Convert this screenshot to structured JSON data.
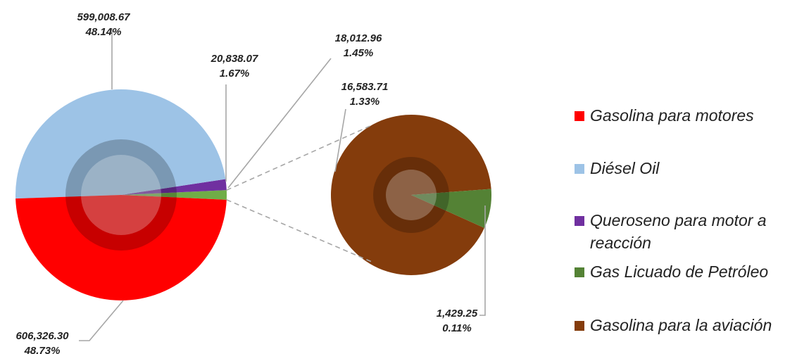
{
  "chart_data": {
    "type": "pie",
    "subtype": "pie-of-pie",
    "title": "",
    "series": [
      {
        "name": "Gasolina para motores",
        "value": 606326.3,
        "value_label": "606,326.30",
        "percent_label": "48.73%",
        "color": "#ff0000"
      },
      {
        "name": "Diésel Oil",
        "value": 599008.67,
        "value_label": "599,008.67",
        "percent_label": "48.14%",
        "color": "#9dc3e6"
      },
      {
        "name": "Queroseno para motor a reacción",
        "value": 20838.07,
        "value_label": "20,838.07",
        "percent_label": "1.67%",
        "color": "#7030a0"
      },
      {
        "name": "Gas Licuado de Petróleo",
        "value": 1429.25,
        "value_label": "1,429.25",
        "percent_label": "0.11%",
        "color": "#548235"
      },
      {
        "name": "Gasolina para la aviación",
        "value": 16583.71,
        "value_label": "16,583.71",
        "percent_label": "1.33%",
        "color": "#843c0c"
      }
    ],
    "other_slice": {
      "value": 18012.96,
      "value_label": "18,012.96",
      "percent_label": "1.45%",
      "color": "#70ad47"
    },
    "secondary_members": [
      "Gas Licuado de Petróleo",
      "Gasolina para la aviación"
    ],
    "legend_position": "right"
  },
  "legend": {
    "items": [
      {
        "label": "Gasolina para motores",
        "color": "#ff0000"
      },
      {
        "label": "Diésel Oil",
        "color": "#9dc3e6"
      },
      {
        "label": "Queroseno para motor a reacción",
        "color": "#7030a0"
      },
      {
        "label": "Gas Licuado de Petróleo",
        "color": "#548235"
      },
      {
        "label": "Gasolina para la aviación",
        "color": "#843c0c"
      }
    ]
  }
}
